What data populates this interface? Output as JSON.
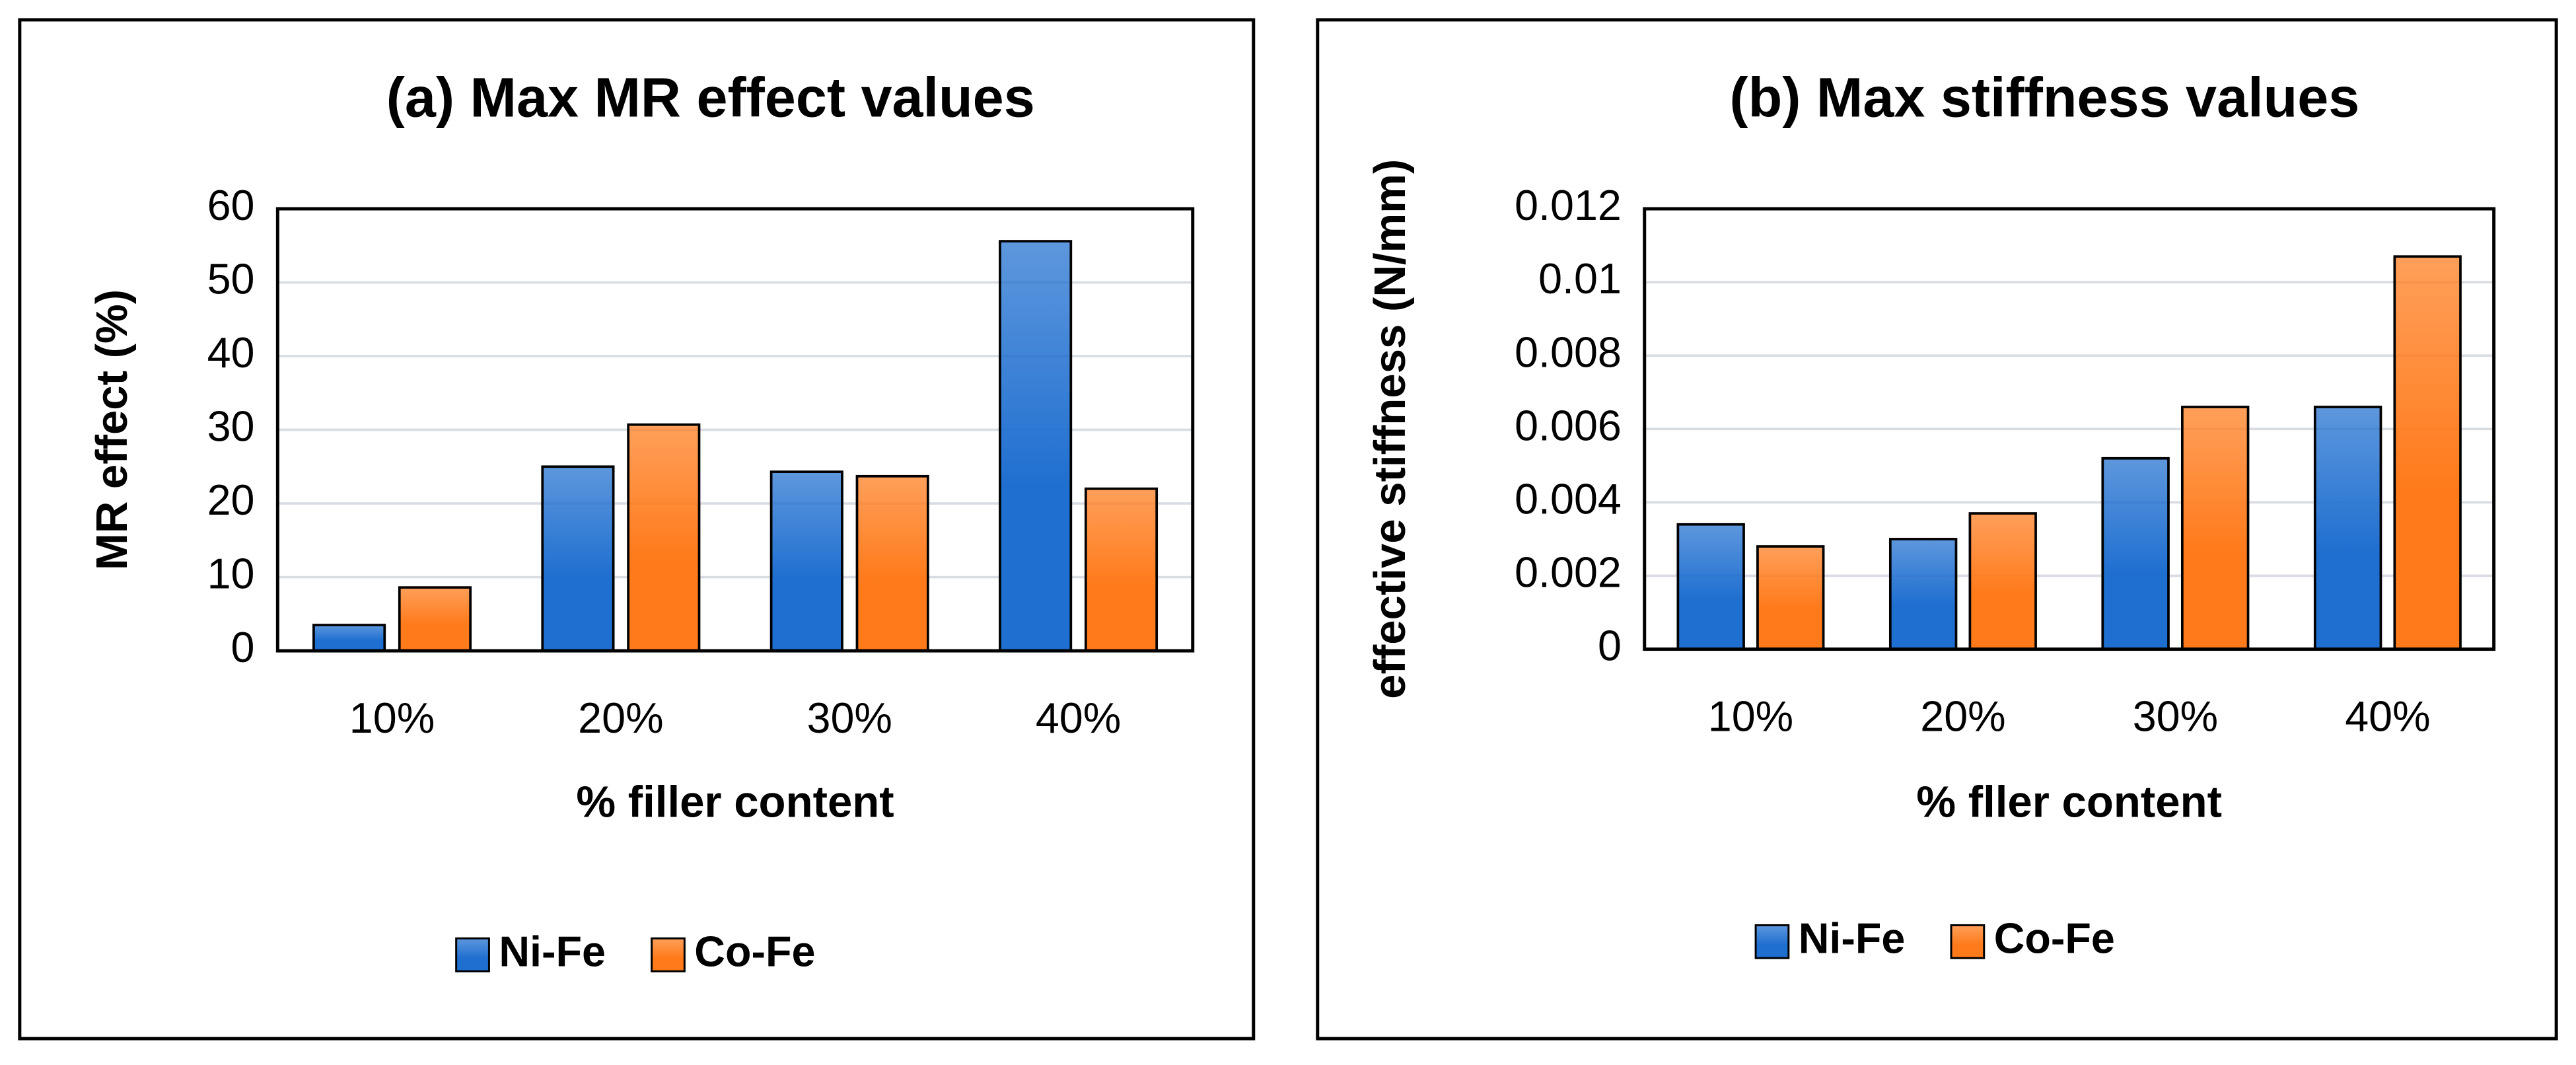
{
  "chart_data": [
    {
      "type": "bar",
      "title": "(a) Max MR effect values",
      "x_label": "% filler content",
      "y_label": "MR effect (%)",
      "categories": [
        "10%",
        "20%",
        "30%",
        "40%"
      ],
      "series": [
        {
          "name": "Ni-Fe",
          "color": "#1f6fd0",
          "values": [
            3.5,
            25,
            24.3,
            55.6
          ]
        },
        {
          "name": "Co-Fe",
          "color": "#ff7a1a",
          "values": [
            8.6,
            30.7,
            23.7,
            22.0
          ]
        }
      ],
      "ylim": [
        0,
        60
      ],
      "yticks": [
        0,
        10,
        20,
        30,
        40,
        50,
        60
      ],
      "grid": true,
      "legend": "bottom"
    },
    {
      "type": "bar",
      "title": "(b) Max stiffness values",
      "x_label": "% fller content",
      "y_label": "effective stiffness (N/mm)",
      "categories": [
        "10%",
        "20%",
        "30%",
        "40%"
      ],
      "series": [
        {
          "name": "Ni-Fe",
          "color": "#1f6fd0",
          "values": [
            0.0034,
            0.003,
            0.0052,
            0.0066
          ]
        },
        {
          "name": "Co-Fe",
          "color": "#ff7a1a",
          "values": [
            0.0028,
            0.0037,
            0.0066,
            0.0107
          ]
        }
      ],
      "ylim": [
        0,
        0.012
      ],
      "yticks": [
        0,
        0.002,
        0.004,
        0.006,
        0.008,
        0.01,
        0.012
      ],
      "grid": true,
      "legend": "bottom"
    }
  ]
}
